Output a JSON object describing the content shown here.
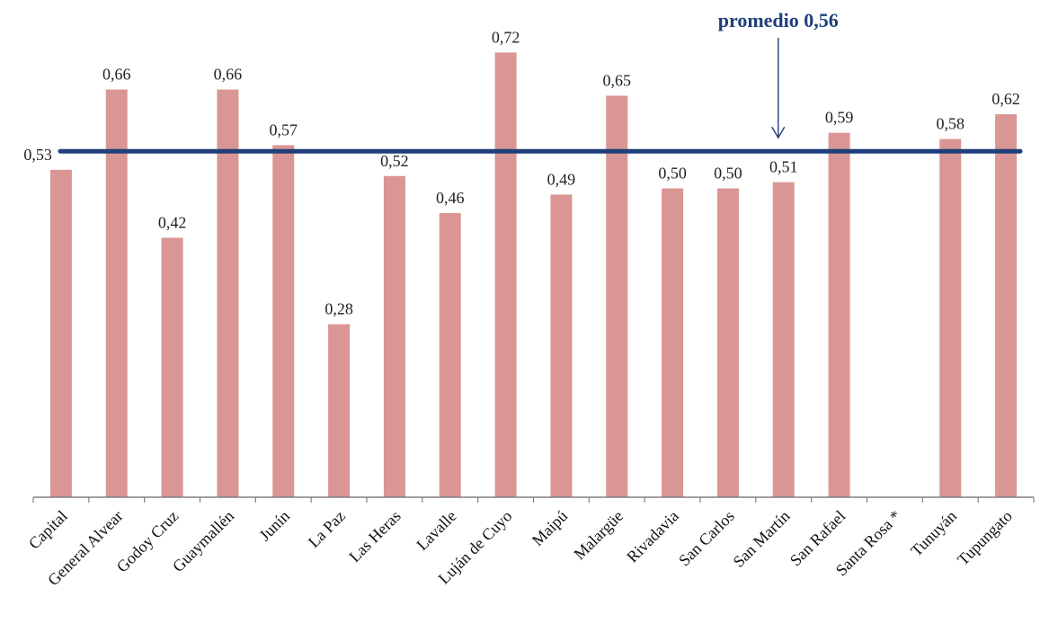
{
  "chart_data": {
    "type": "bar",
    "categories": [
      "Capital",
      "General Alvear",
      "Godoy Cruz",
      "Guaymallén",
      "Junín",
      "La Paz",
      "Las Heras",
      "Lavalle",
      "Luján de Cuyo",
      "Maipú",
      "Malargüe",
      "Rivadavia",
      "San Carlos",
      "San Martín",
      "San Rafael",
      "Santa Rosa *",
      "Tunuyán",
      "Tupungato"
    ],
    "values": [
      0.53,
      0.66,
      0.42,
      0.66,
      0.57,
      0.28,
      0.52,
      0.46,
      0.72,
      0.49,
      0.65,
      0.5,
      0.5,
      0.51,
      0.59,
      null,
      0.58,
      0.62
    ],
    "value_labels": [
      "0,53",
      "0,66",
      "0,42",
      "0,66",
      "0,57",
      "0,28",
      "0,52",
      "0,46",
      "0,72",
      "0,49",
      "0,65",
      "0,50",
      "0,50",
      "0,51",
      "0,59",
      "",
      "0,58",
      "0,62"
    ],
    "average": {
      "value": 0.56,
      "label": "promedio 0,56",
      "points_to": "San Martín"
    },
    "ylim": [
      0,
      0.8
    ],
    "grid": false,
    "legend": "none",
    "colors": {
      "bar": "#d99694",
      "average_line": "#1f3f7a",
      "axis": "#808080"
    }
  }
}
